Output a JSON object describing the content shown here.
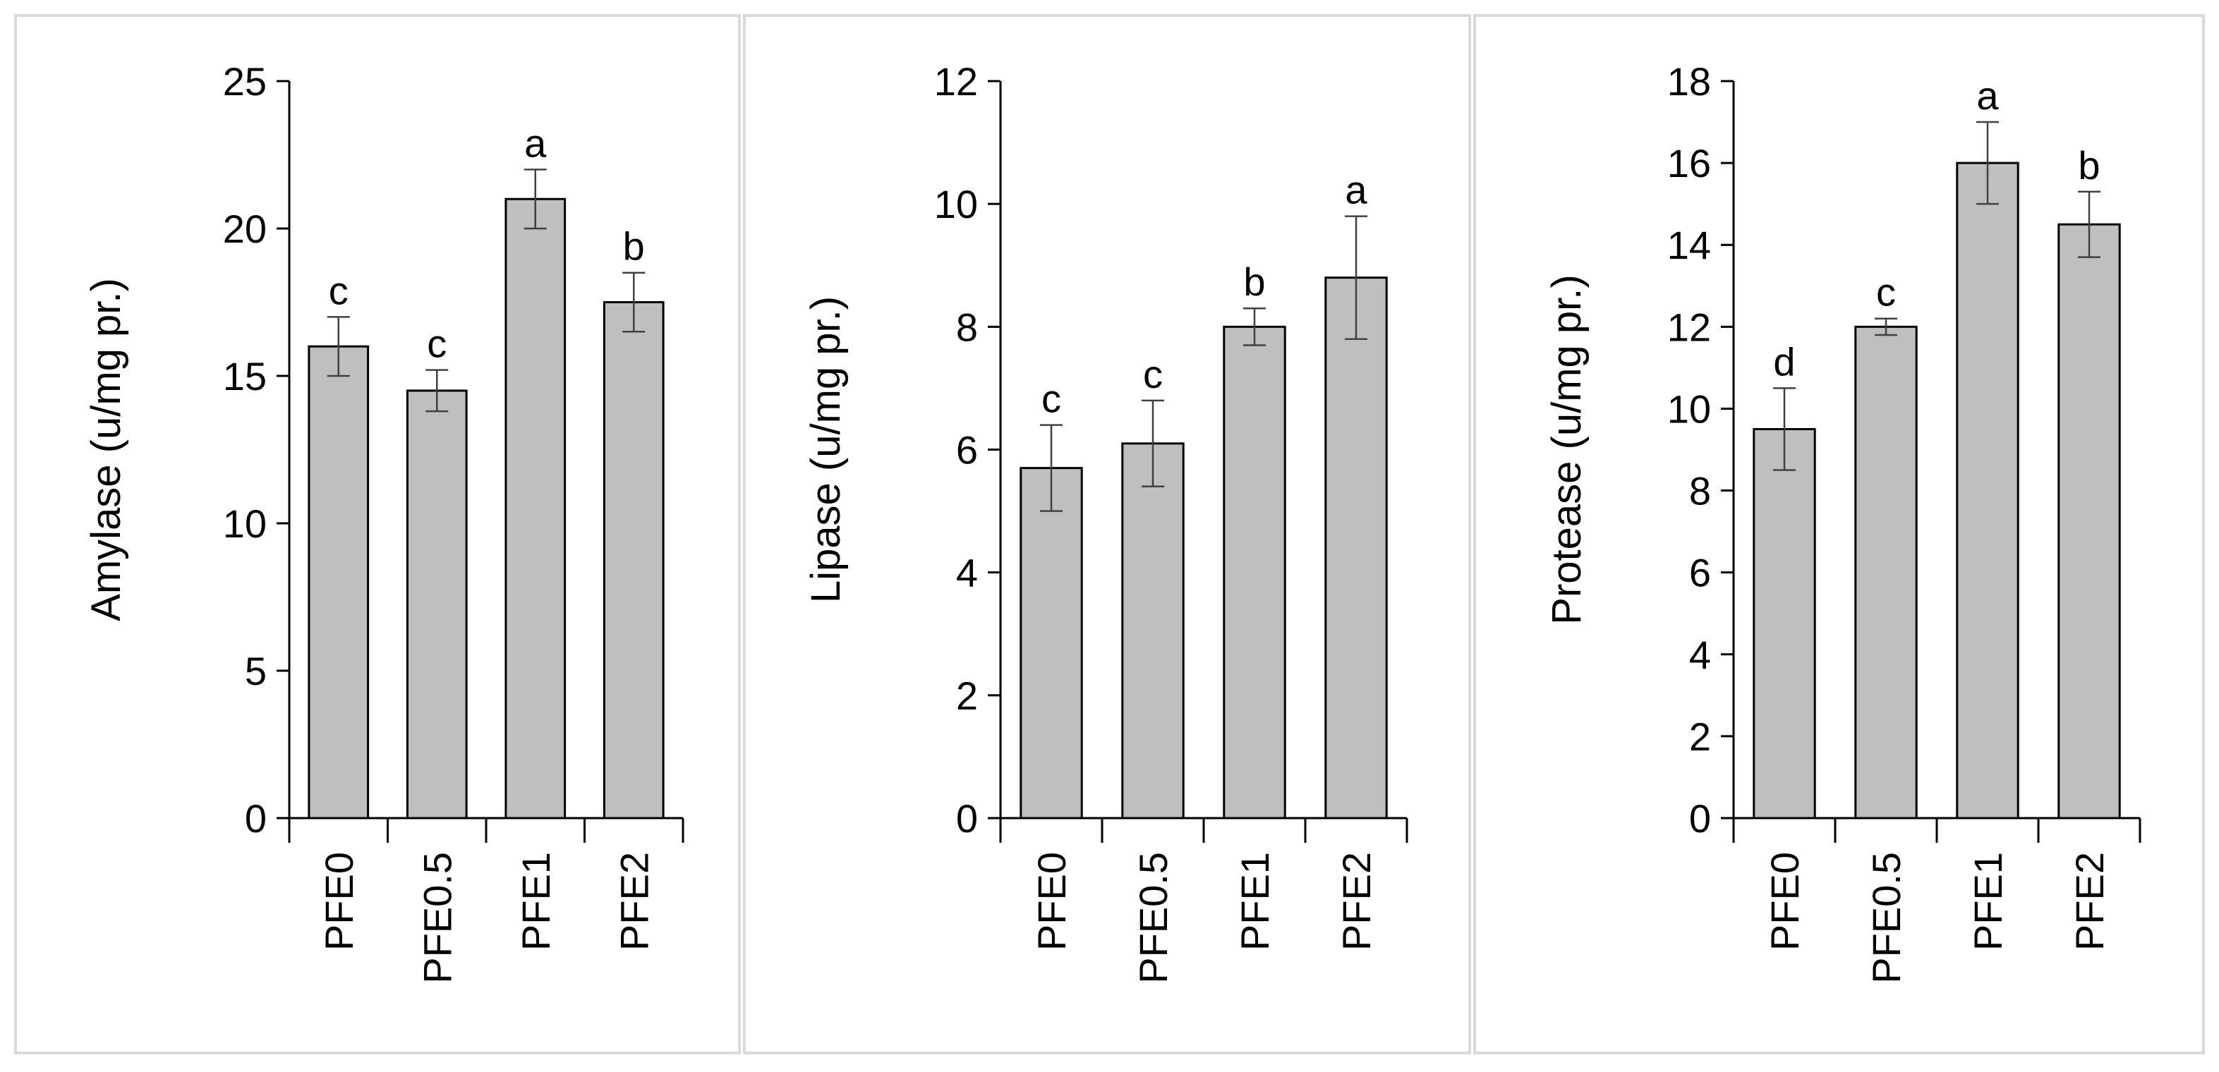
{
  "chart_data": [
    {
      "type": "bar",
      "categories": [
        "PFE0",
        "PFE0.5",
        "PFE1",
        "PFE2"
      ],
      "values": [
        16,
        14.5,
        21,
        17.5
      ],
      "errors": [
        1.0,
        0.7,
        1.0,
        1.0
      ],
      "significance": [
        "c",
        "c",
        "a",
        "b"
      ],
      "ylabel": "Amylase (u/mg pr.)",
      "ylim": [
        0,
        25
      ],
      "yticks": [
        "0",
        "5",
        "10",
        "15",
        "20",
        "25"
      ],
      "bar_color": "#bfbfbf",
      "grid": false
    },
    {
      "type": "bar",
      "categories": [
        "PFE0",
        "PFE0.5",
        "PFE1",
        "PFE2"
      ],
      "values": [
        5.7,
        6.1,
        8.0,
        8.8
      ],
      "errors": [
        0.7,
        0.7,
        0.3,
        1.0
      ],
      "significance": [
        "c",
        "c",
        "b",
        "a"
      ],
      "ylabel": "Lipase (u/mg pr.)",
      "ylim": [
        0,
        12
      ],
      "yticks": [
        "0",
        "2",
        "4",
        "6",
        "8",
        "10",
        "12"
      ],
      "bar_color": "#bfbfbf",
      "grid": false
    },
    {
      "type": "bar",
      "categories": [
        "PFE0",
        "PFE0.5",
        "PFE1",
        "PFE2"
      ],
      "values": [
        9.5,
        12.0,
        16.0,
        14.5
      ],
      "errors": [
        1.0,
        0.2,
        1.0,
        0.8
      ],
      "significance": [
        "d",
        "c",
        "a",
        "b"
      ],
      "ylabel": "Protease (u/mg pr.)",
      "ylim": [
        0,
        18
      ],
      "yticks": [
        "0",
        "2",
        "4",
        "6",
        "8",
        "10",
        "12",
        "14",
        "16",
        "18"
      ],
      "bar_color": "#bfbfbf",
      "grid": false
    }
  ]
}
